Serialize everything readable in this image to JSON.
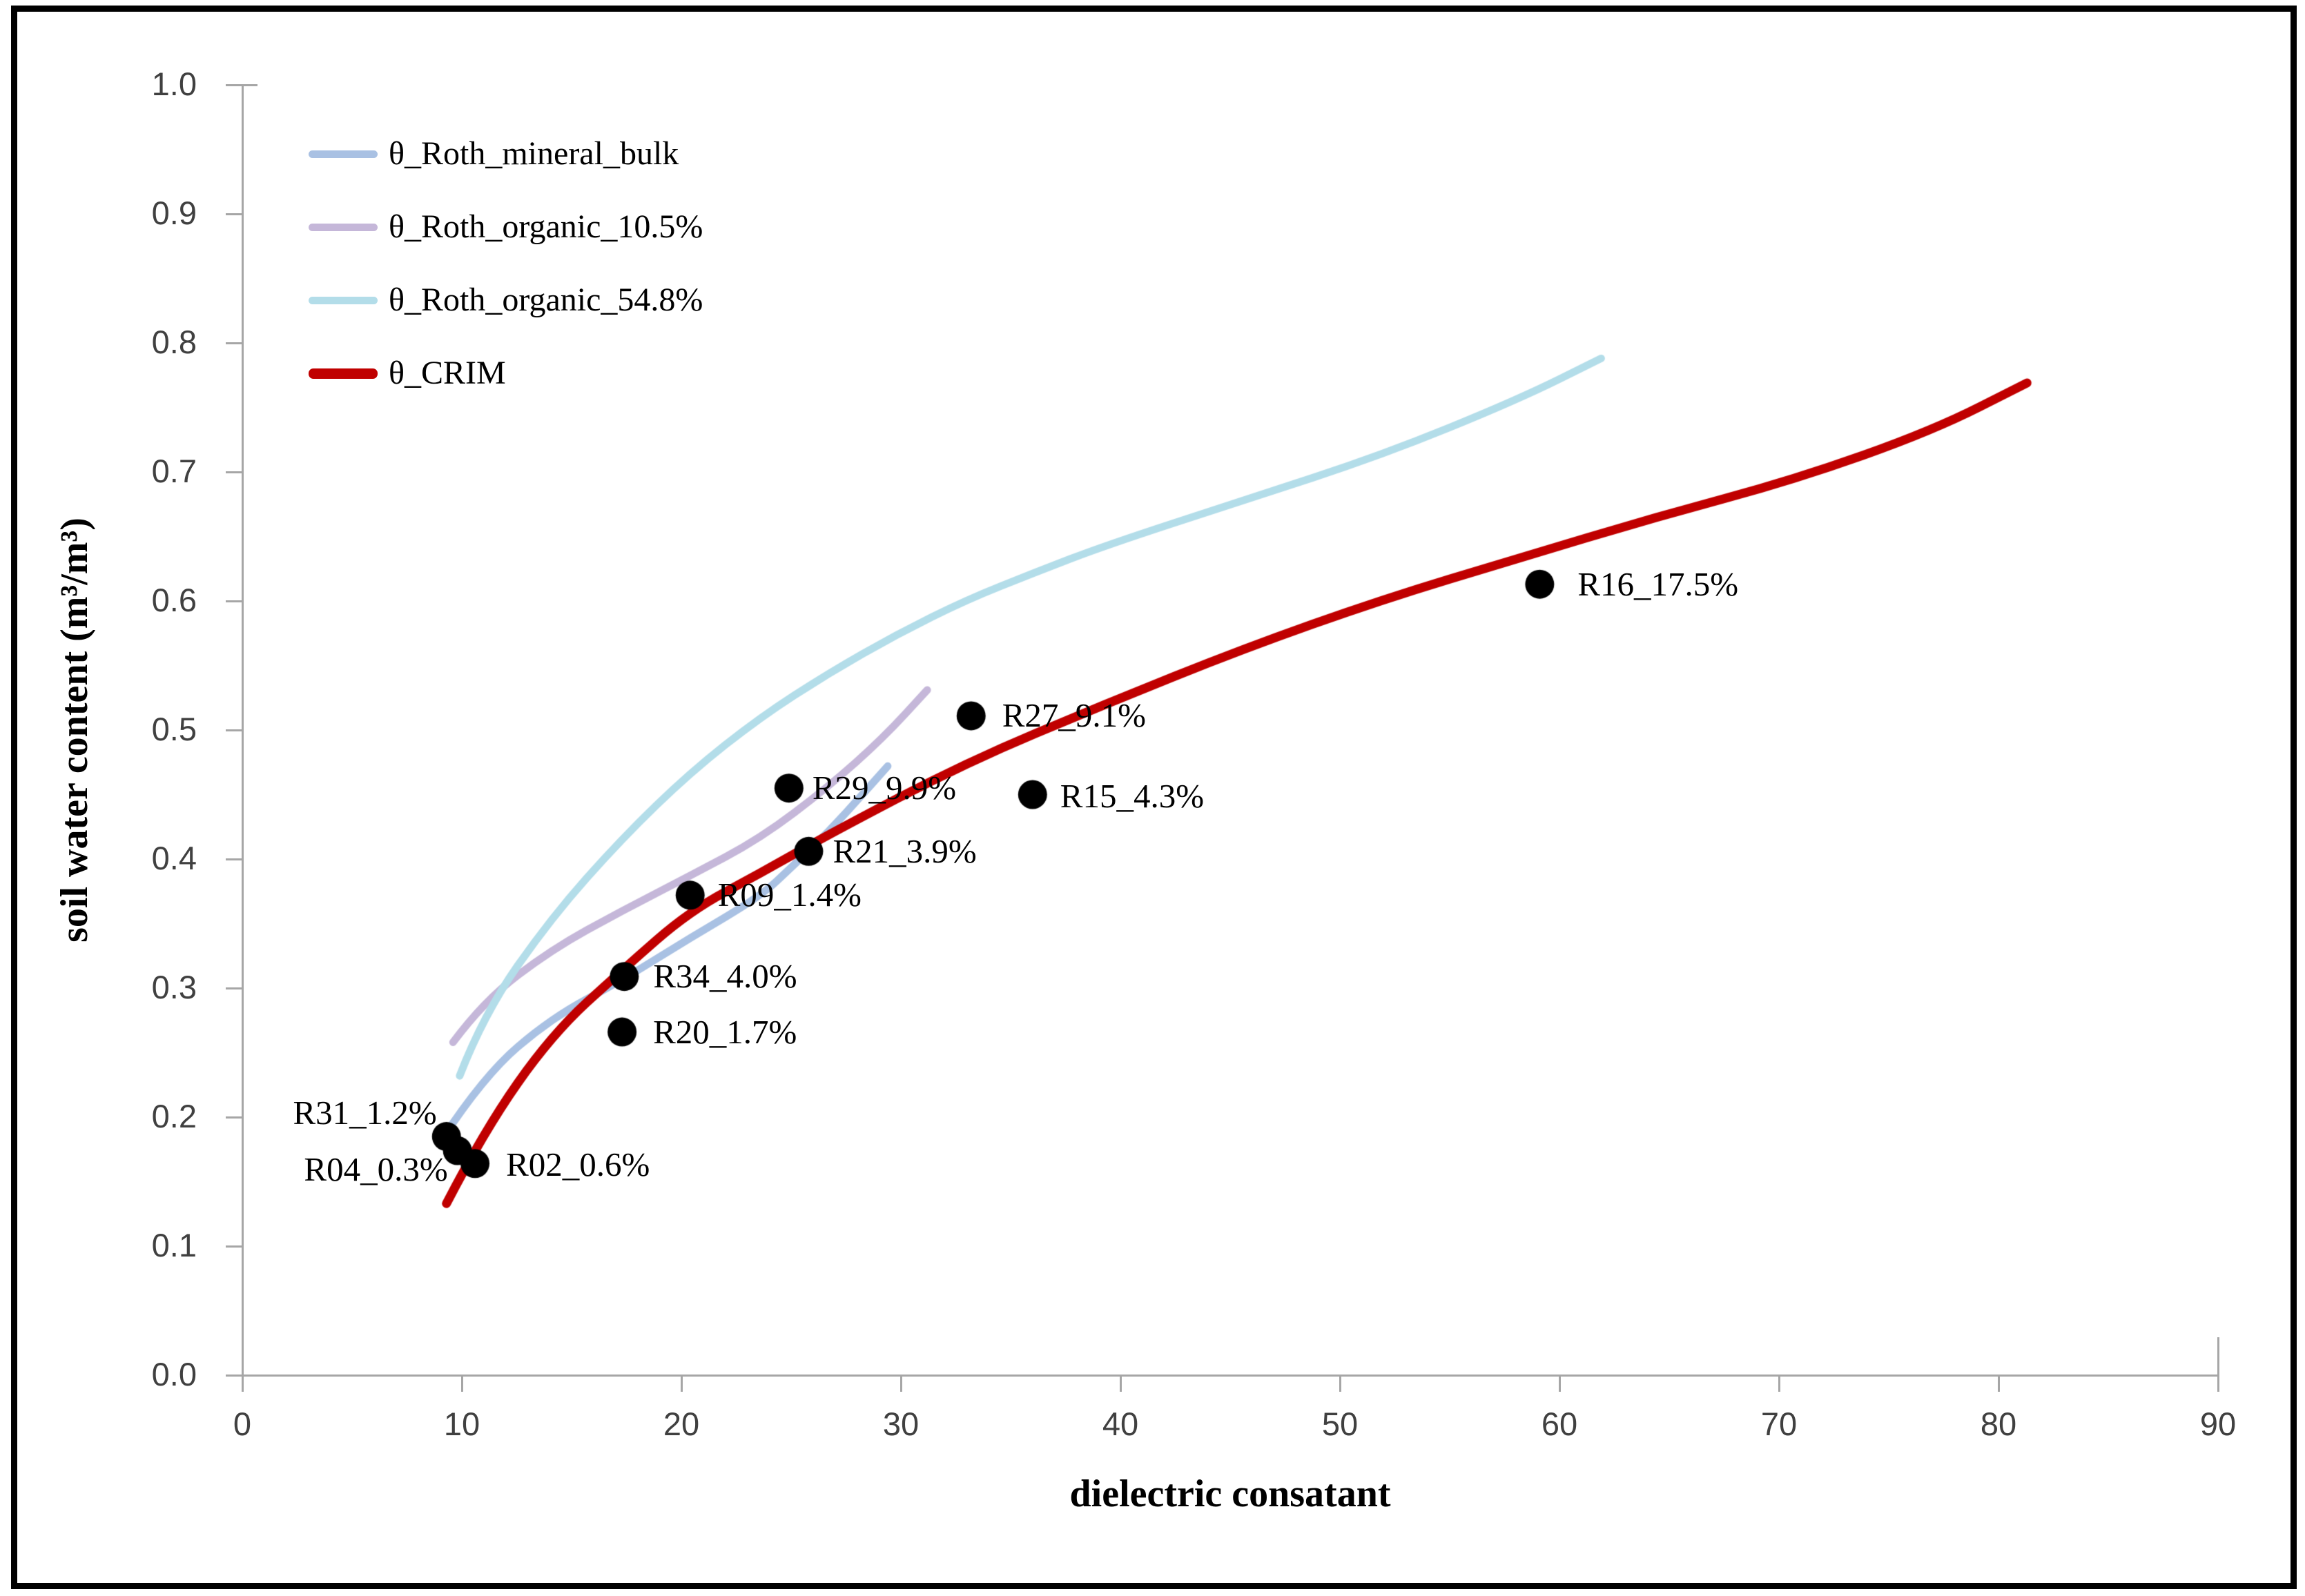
{
  "chart_data": {
    "type": "scatter",
    "title": "",
    "xlabel": "dielectric consatant",
    "ylabel": "soil water content (m³/m³)",
    "xlim": [
      0,
      90
    ],
    "xtick_labels": [
      "0",
      "10",
      "20",
      "30",
      "40",
      "50",
      "60",
      "70",
      "80",
      "90"
    ],
    "ylim": [
      0,
      1
    ],
    "ytick_labels": [
      "0.0",
      "0.1",
      "0.2",
      "0.3",
      "0.4",
      "0.5",
      "0.6",
      "0.7",
      "0.8",
      "0.9",
      "1.0"
    ],
    "grid": false,
    "axis_color": "#a6a6a6",
    "tick_text_color": "#404040",
    "point_color": "#000000",
    "point_radius": 21,
    "legend": {
      "position": "top-left",
      "entries": [
        {
          "label": "θ_Roth_mineral_bulk",
          "color": "#a9c1e3",
          "swatch_h": 11
        },
        {
          "label": "θ_Roth_organic_10.5%",
          "color": "#c5b7d9",
          "swatch_h": 11
        },
        {
          "label": "θ_Roth_organic_54.8%",
          "color": "#b3dde9",
          "swatch_h": 11
        },
        {
          "label": "θ_CRIM",
          "color": "#c00000",
          "swatch_h": 15
        }
      ]
    },
    "series": [
      {
        "name": "θ_Roth_mineral_bulk",
        "color": "#a9c1e3",
        "width": 11,
        "points": [
          [
            9.1,
            0.183
          ],
          [
            11,
            0.232
          ],
          [
            14.1,
            0.277
          ],
          [
            17.3,
            0.306
          ],
          [
            20.4,
            0.339
          ],
          [
            23.6,
            0.371
          ],
          [
            25.1,
            0.395
          ],
          [
            26.7,
            0.421
          ],
          [
            28.3,
            0.451
          ],
          [
            29.4,
            0.472
          ]
        ]
      },
      {
        "name": "θ_Roth_organic_10.5%",
        "color": "#c5b7d9",
        "width": 11,
        "points": [
          [
            9.6,
            0.258
          ],
          [
            11,
            0.29
          ],
          [
            14.1,
            0.33
          ],
          [
            17.3,
            0.36
          ],
          [
            20.4,
            0.387
          ],
          [
            23.6,
            0.416
          ],
          [
            26.7,
            0.456
          ],
          [
            29.2,
            0.494
          ],
          [
            31.2,
            0.531
          ]
        ]
      },
      {
        "name": "θ_Roth_organic_54.8%",
        "color": "#b3dde9",
        "width": 11,
        "points": [
          [
            9.9,
            0.232
          ],
          [
            11,
            0.28
          ],
          [
            14.1,
            0.355
          ],
          [
            17.3,
            0.416
          ],
          [
            20.4,
            0.467
          ],
          [
            23.6,
            0.51
          ],
          [
            26.7,
            0.544
          ],
          [
            29.8,
            0.574
          ],
          [
            33,
            0.601
          ],
          [
            36.1,
            0.622
          ],
          [
            39.3,
            0.643
          ],
          [
            45.6,
            0.678
          ],
          [
            51.9,
            0.713
          ],
          [
            58.1,
            0.756
          ],
          [
            61.9,
            0.788
          ]
        ]
      },
      {
        "name": "θ_CRIM",
        "color": "#c00000",
        "width": 13,
        "points": [
          [
            9.3,
            0.133
          ],
          [
            11,
            0.189
          ],
          [
            14.1,
            0.264
          ],
          [
            17.3,
            0.314
          ],
          [
            20.4,
            0.36
          ],
          [
            23.6,
            0.389
          ],
          [
            26.7,
            0.419
          ],
          [
            33,
            0.475
          ],
          [
            39.3,
            0.52
          ],
          [
            45.6,
            0.563
          ],
          [
            51.9,
            0.601
          ],
          [
            58.1,
            0.633
          ],
          [
            64.4,
            0.665
          ],
          [
            70.7,
            0.694
          ],
          [
            77,
            0.732
          ],
          [
            81.3,
            0.769
          ]
        ]
      }
    ],
    "points": [
      {
        "label": "R31_1.2%",
        "x": 9.3,
        "y": 0.185,
        "side": "left",
        "gap": 14,
        "dy": -34
      },
      {
        "label": "R04_0.3%",
        "x": 9.8,
        "y": 0.174,
        "side": "left",
        "gap": 14,
        "dy": 27
      },
      {
        "label": "R02_0.6%",
        "x": 10.6,
        "y": 0.164,
        "side": "right",
        "gap": 45,
        "dy": 2
      },
      {
        "label": "R34_4.0%",
        "x": 17.4,
        "y": 0.309,
        "side": "right",
        "gap": 42,
        "dy": 0
      },
      {
        "label": "R20_1.7%",
        "x": 17.3,
        "y": 0.266,
        "side": "right",
        "gap": 45,
        "dy": 0
      },
      {
        "label": "R09_1.4%",
        "x": 20.4,
        "y": 0.372,
        "side": "right",
        "gap": 40,
        "dy": 0
      },
      {
        "label": "R21_3.9%",
        "x": 25.8,
        "y": 0.406,
        "side": "right",
        "gap": 35,
        "dy": 0
      },
      {
        "label": "R29_9.9%",
        "x": 24.9,
        "y": 0.455,
        "side": "right",
        "gap": 34,
        "dy": 0
      },
      {
        "label": "R27_9.1%",
        "x": 33.2,
        "y": 0.511,
        "side": "right",
        "gap": 45,
        "dy": 0
      },
      {
        "label": "R15_4.3%",
        "x": 36.0,
        "y": 0.45,
        "side": "right",
        "gap": 40,
        "dy": 2
      },
      {
        "label": "R16_17.5%",
        "x": 59.1,
        "y": 0.613,
        "side": "right",
        "gap": 55,
        "dy": 0
      }
    ]
  }
}
